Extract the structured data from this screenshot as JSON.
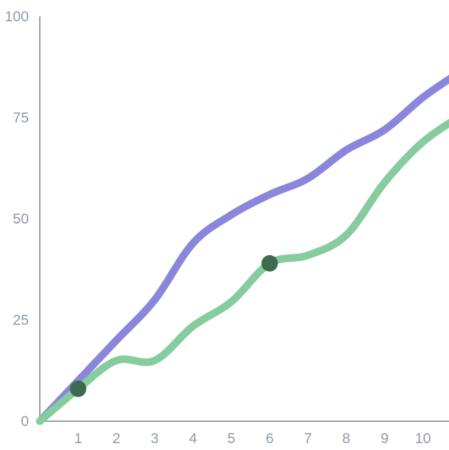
{
  "chart_data": {
    "type": "line",
    "title": "",
    "xlabel": "",
    "ylabel": "",
    "x": [
      0,
      1,
      2,
      3,
      4,
      5,
      6,
      7,
      8,
      9,
      10,
      11
    ],
    "x_tick_labels": [
      "1",
      "2",
      "3",
      "4",
      "5",
      "6",
      "7",
      "8",
      "9",
      "10",
      "1"
    ],
    "y_tick_labels": [
      "0",
      "25",
      "50",
      "75",
      "100"
    ],
    "y_ticks": [
      0,
      25,
      50,
      75,
      100
    ],
    "xlim": [
      0,
      10.6
    ],
    "ylim": [
      0,
      100
    ],
    "grid": false,
    "legend": "none",
    "series": [
      {
        "color": "#8b86dc",
        "values": [
          0,
          10,
          20,
          30,
          44,
          51,
          56,
          60,
          67,
          72,
          80,
          86.5
        ]
      },
      {
        "color": "#86cc9e",
        "values": [
          0,
          8,
          15,
          15,
          23.5,
          29.5,
          39,
          41,
          46,
          59,
          69,
          75.5
        ],
        "highlighted_points": [
          {
            "x": 1,
            "y": 8
          },
          {
            "x": 6,
            "y": 39
          }
        ]
      }
    ],
    "colors": {
      "axis": "#8f98ad",
      "tick_text": "#8f98ad",
      "highlight_marker": "#3e6b4f"
    }
  }
}
